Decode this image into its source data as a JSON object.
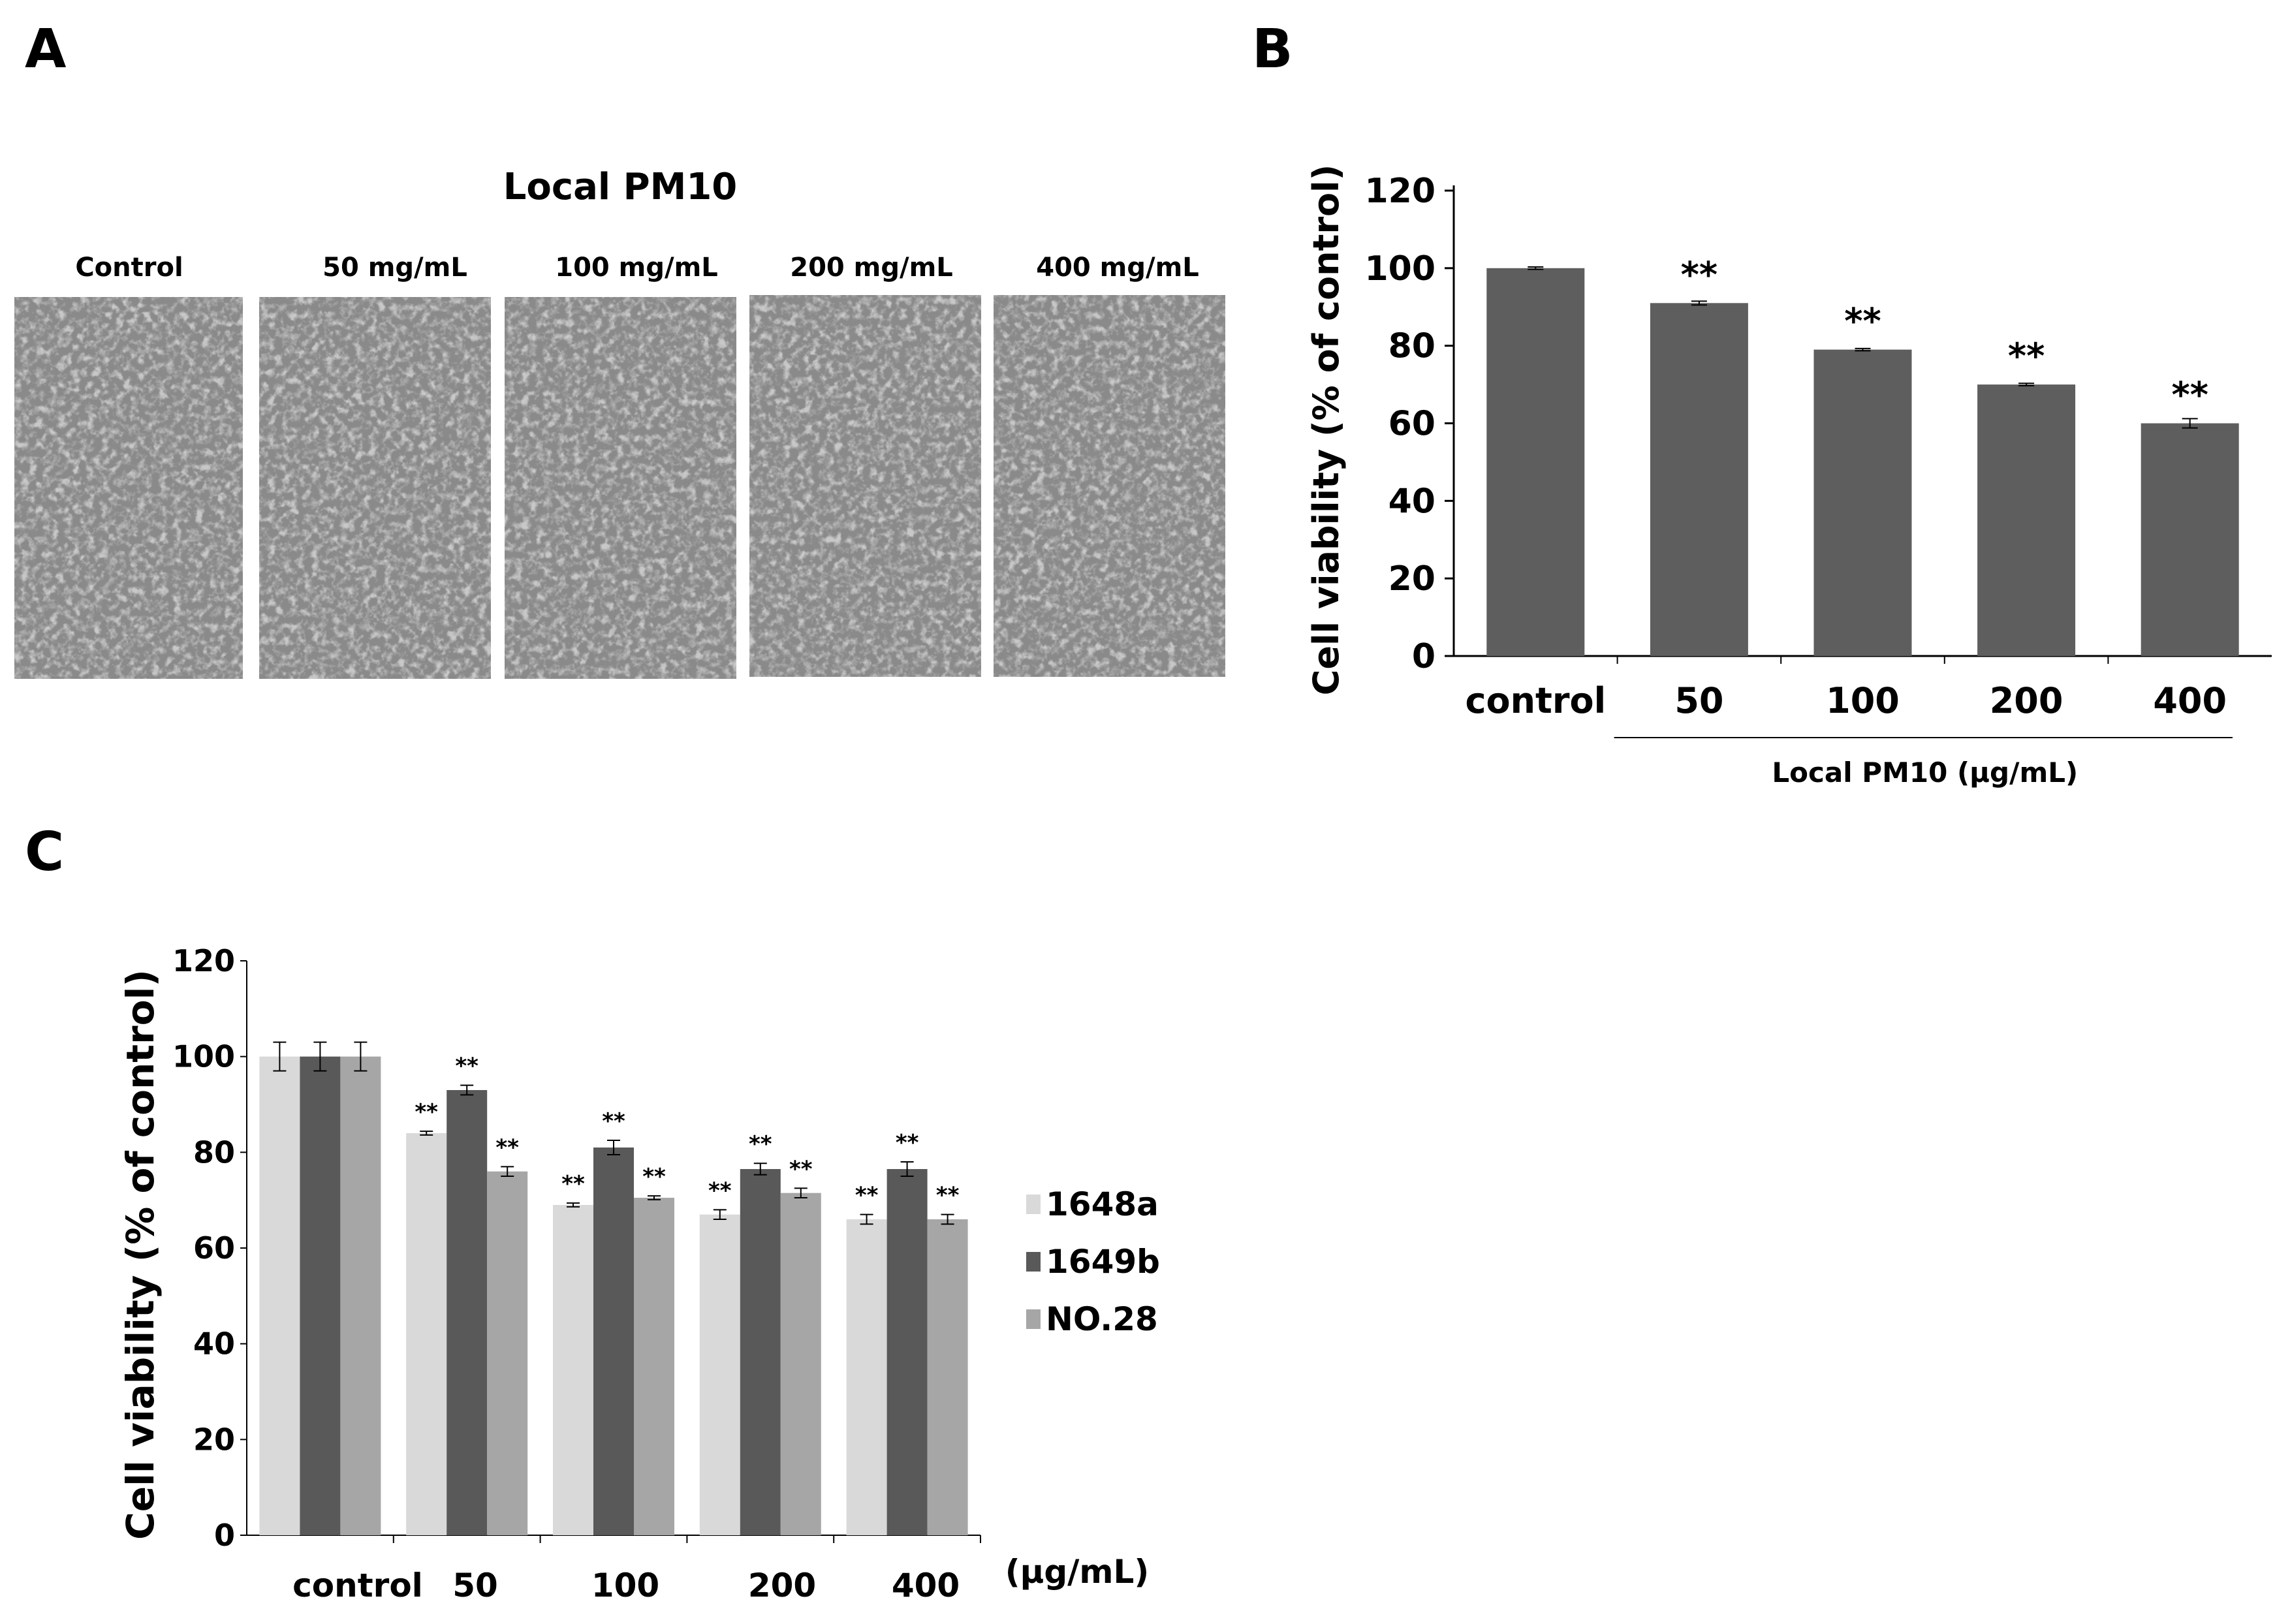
{
  "panels": {
    "a": {
      "letter": "A",
      "title": "Local PM10",
      "images": [
        {
          "label": "Control"
        },
        {
          "label": "50 mg/mL"
        },
        {
          "label": "100 mg/mL"
        },
        {
          "label": "200 mg/mL"
        },
        {
          "label": "400 mg/mL"
        }
      ]
    },
    "b": {
      "letter": "B"
    },
    "c": {
      "letter": "C"
    }
  },
  "chart_data": [
    {
      "id": "B",
      "type": "bar",
      "categories": [
        "control",
        "50",
        "100",
        "200",
        "400"
      ],
      "values": [
        100,
        91,
        79,
        70,
        60
      ],
      "errors": [
        0.3,
        0.5,
        0.3,
        0.3,
        1.2
      ],
      "significance": [
        "",
        "**",
        "**",
        "**",
        "**"
      ],
      "ylabel": "Cell viability (% of control)",
      "xlabel": "Local PM10 (μg/mL)",
      "ylim": [
        0,
        120
      ],
      "yticks": [
        0,
        20,
        40,
        60,
        80,
        100,
        120
      ],
      "color": "#5e5e5e"
    },
    {
      "id": "C",
      "type": "bar",
      "categories": [
        "control",
        "50",
        "100",
        "200",
        "400"
      ],
      "series": [
        {
          "name": "1648a",
          "color": "#d9d9d9",
          "values": [
            100,
            84,
            69,
            67,
            66
          ],
          "errors": [
            3,
            0.4,
            0.4,
            1,
            1
          ],
          "significance": [
            "",
            "**",
            "**",
            "**",
            "**"
          ]
        },
        {
          "name": "1649b",
          "color": "#595959",
          "values": [
            100,
            93,
            81,
            76.5,
            76.5
          ],
          "errors": [
            3,
            1,
            1.5,
            1.2,
            1.5
          ],
          "significance": [
            "",
            "**",
            "**",
            "**",
            "**"
          ]
        },
        {
          "name": "NO.28",
          "color": "#a6a6a6",
          "values": [
            100,
            76,
            70.5,
            71.5,
            66
          ],
          "errors": [
            3,
            1,
            0.4,
            1,
            1
          ],
          "significance": [
            "",
            "**",
            "**",
            "**",
            "**"
          ]
        }
      ],
      "ylabel": "Cell viability (% of control)",
      "xlabel": "(μg/mL)",
      "ylim": [
        0,
        120
      ],
      "yticks": [
        0,
        20,
        40,
        60,
        80,
        100,
        120
      ],
      "legend": "right"
    }
  ]
}
